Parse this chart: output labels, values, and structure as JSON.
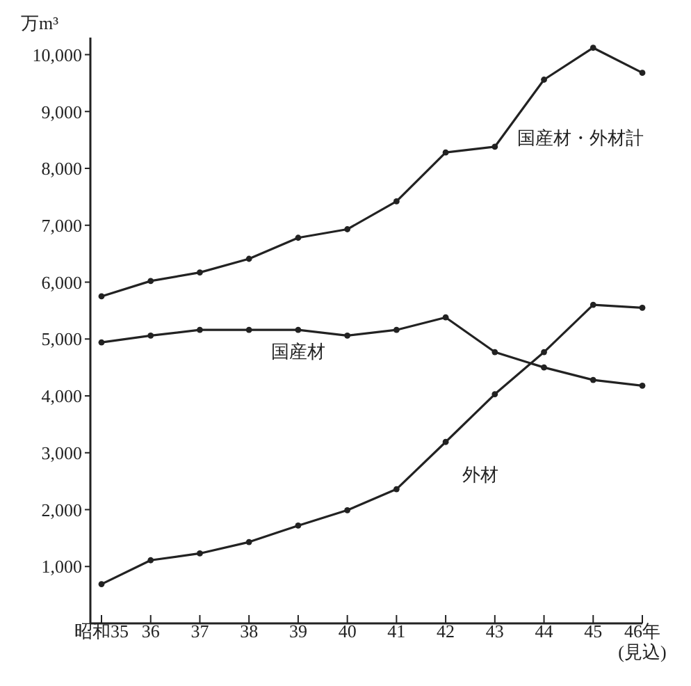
{
  "chart_data": {
    "type": "line",
    "ylabel": "万m³",
    "categories": [
      "昭和35",
      "36",
      "37",
      "38",
      "39",
      "40",
      "41",
      "42",
      "43",
      "44",
      "45",
      "46年\n(見込)"
    ],
    "series": [
      {
        "name": "国産材・外材計",
        "color": "#222222",
        "values": [
          5750,
          6020,
          6170,
          6410,
          6780,
          6930,
          7420,
          8280,
          8380,
          9560,
          10120,
          9680
        ]
      },
      {
        "name": "国産材",
        "color": "#222222",
        "values": [
          4940,
          5060,
          5160,
          5160,
          5160,
          5060,
          5160,
          5380,
          4770,
          4500,
          4280,
          4180
        ]
      },
      {
        "name": "外材",
        "color": "#222222",
        "values": [
          690,
          1110,
          1230,
          1430,
          1720,
          1990,
          2360,
          3190,
          4030,
          4770,
          5600,
          5550
        ]
      }
    ],
    "ylim": [
      0,
      10300
    ],
    "yticks": [
      {
        "value": 1000,
        "label": "1,000"
      },
      {
        "value": 2000,
        "label": "2,000"
      },
      {
        "value": 3000,
        "label": "3,000"
      },
      {
        "value": 4000,
        "label": "4,000"
      },
      {
        "value": 5000,
        "label": "5,000"
      },
      {
        "value": 6000,
        "label": "6,000"
      },
      {
        "value": 7000,
        "label": "7,000"
      },
      {
        "value": 8000,
        "label": "8,000"
      },
      {
        "value": 9000,
        "label": "9,000"
      },
      {
        "value": 10000,
        "label": "10,000"
      }
    ],
    "grid": false,
    "marker": "circle",
    "line_style": "solid"
  }
}
